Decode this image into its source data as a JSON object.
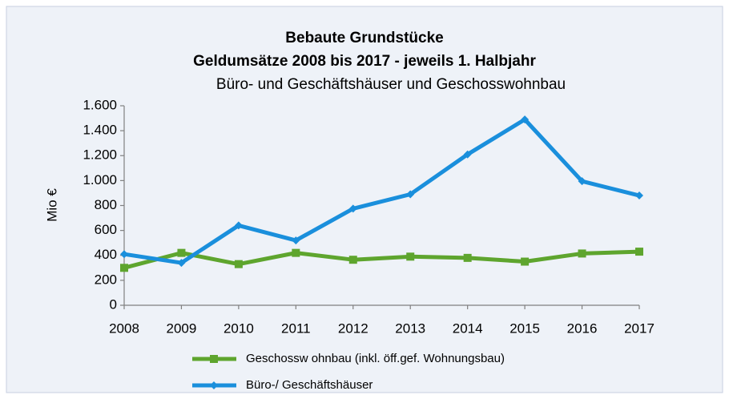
{
  "chart_data": {
    "type": "line",
    "title": "Bebaute Grundstücke",
    "subtitle": "Geldumsätze  2008 bis 2017 - jeweils 1. Halbjahr",
    "subtitle2": "Büro- und  Geschäftshäuser und Geschosswohnbau",
    "ylabel": "Mio €",
    "categories": [
      "2008",
      "2009",
      "2010",
      "2011",
      "2012",
      "2013",
      "2014",
      "2015",
      "2016",
      "2017"
    ],
    "series": [
      {
        "name": "Geschossw ohnbau (inkl. öff.gef. Wohnungsbau)",
        "color": "#5ea52e",
        "marker": "square",
        "values": [
          300,
          420,
          330,
          420,
          365,
          390,
          380,
          350,
          415,
          430
        ]
      },
      {
        "name": "Büro-/ Geschäftshäuser",
        "color": "#1a8fdc",
        "marker": "diamond",
        "values": [
          410,
          340,
          640,
          520,
          775,
          890,
          1210,
          1490,
          995,
          880
        ]
      }
    ],
    "ylim": [
      0,
      1600
    ],
    "yticks": [
      0,
      200,
      400,
      600,
      800,
      {
        "value": 1000,
        "label": "1.000"
      },
      {
        "value": 1200,
        "label": "1.200"
      },
      {
        "value": 1400,
        "label": "1.400"
      },
      {
        "value": 1600,
        "label": "1.600"
      }
    ],
    "grid": false,
    "legend": "bottom"
  }
}
